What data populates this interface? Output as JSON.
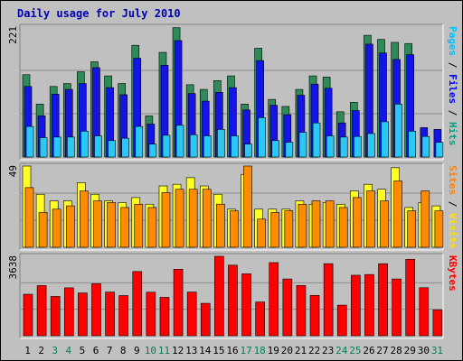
{
  "chart_data": {
    "type": "bar",
    "title": "Daily usage for July 2010",
    "categories": [
      "1",
      "2",
      "3",
      "4",
      "5",
      "6",
      "7",
      "8",
      "9",
      "10",
      "11",
      "12",
      "13",
      "14",
      "15",
      "16",
      "17",
      "18",
      "19",
      "20",
      "21",
      "22",
      "23",
      "24",
      "25",
      "26",
      "27",
      "28",
      "29",
      "30",
      "31"
    ],
    "weekend_days": [
      3,
      4,
      10,
      11,
      17,
      18,
      24,
      25,
      31
    ],
    "panels": [
      {
        "name": "hits-files-pages",
        "ymax": 221,
        "ymax_label": "221",
        "right_labels": [
          {
            "text": "Pages",
            "color": "#00c0ff"
          },
          {
            "text": " / ",
            "color": "#000000"
          },
          {
            "text": "Files",
            "color": "#0000ff"
          },
          {
            "text": " / ",
            "color": "#000000"
          },
          {
            "text": "Hits",
            "color": "#00a080"
          }
        ],
        "series": [
          {
            "name": "Hits",
            "color": "#2e8b57",
            "values": [
              140,
              90,
              120,
              125,
              145,
              162,
              138,
              125,
              190,
              70,
              178,
              220,
              123,
              115,
              130,
              138,
              90,
              185,
              98,
              86,
              115,
              138,
              136,
              77,
              93,
              207,
              200,
              195,
              193,
              0,
              0
            ]
          },
          {
            "name": "Files",
            "color": "#1414e6",
            "values": [
              120,
              70,
              107,
              115,
              125,
              152,
              118,
              106,
              168,
              56,
              156,
              198,
              108,
              95,
              110,
              118,
              80,
              164,
              88,
              72,
              105,
              124,
              117,
              58,
              79,
              192,
              177,
              166,
              174,
              50,
              47
            ]
          },
          {
            "name": "Pages",
            "color": "#29c8f7",
            "values": [
              52,
              33,
              34,
              34,
              44,
              36,
              28,
              32,
              52,
              22,
              37,
              54,
              38,
              36,
              47,
              36,
              22,
              67,
              28,
              25,
              42,
              58,
              36,
              34,
              35,
              40,
              60,
              90,
              44,
              35,
              25
            ]
          }
        ]
      },
      {
        "name": "visits-sites",
        "ymax": 49,
        "ymax_label": "49",
        "right_labels": [
          {
            "text": "Sites",
            "color": "#ff8000"
          },
          {
            "text": " / ",
            "color": "#000000"
          },
          {
            "text": "Visits",
            "color": "#ffe000"
          }
        ],
        "series": [
          {
            "name": "Visits",
            "color": "#ffff26",
            "values": [
              49,
              32,
              28,
              28,
              39,
              32,
              28,
              27,
              30,
              26,
              37,
              38,
              42,
              37,
              32,
              23,
              44,
              23,
              23,
              23,
              28,
              26,
              27,
              26,
              34,
              38,
              35,
              48,
              24,
              27,
              25
            ]
          },
          {
            "name": "Sites",
            "color": "#ff8c00",
            "values": [
              36,
              21,
              23,
              25,
              34,
              28,
              27,
              24,
              26,
              24,
              33,
              35,
              35,
              35,
              26,
              22,
              49,
              17,
              21,
              22,
              26,
              28,
              28,
              24,
              30,
              34,
              28,
              40,
              22,
              34,
              22
            ]
          }
        ]
      },
      {
        "name": "kbytes",
        "ymax": 3638,
        "ymax_label": "3638",
        "right_labels": [
          {
            "text": "KBytes",
            "color": "#ff0000"
          }
        ],
        "series": [
          {
            "name": "KBytes",
            "color": "#ff0000",
            "values": [
              1900,
              2298,
              1800,
              2195,
              1958,
              2380,
              2000,
              1839,
              2941,
              1994,
              1758,
              3046,
              2000,
              1484,
              3638,
              3232,
              2837,
              1546,
              3350,
              2600,
              2300,
              1849,
              3301,
              1401,
              2771,
              2804,
              3300,
              2600,
              3503,
              2200,
              1182
            ]
          }
        ]
      }
    ]
  }
}
